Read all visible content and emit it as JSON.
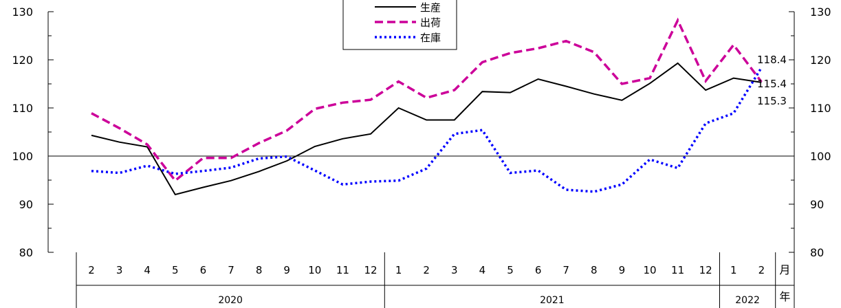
{
  "chart_data": {
    "type": "line",
    "title": "",
    "ylabel": "",
    "xlabel": "",
    "ylim": [
      80,
      130
    ],
    "yticks": [
      80,
      90,
      100,
      110,
      120,
      130
    ],
    "reference_line": 100,
    "categories": [
      "2",
      "3",
      "4",
      "5",
      "6",
      "7",
      "8",
      "9",
      "10",
      "11",
      "12",
      "1",
      "2",
      "3",
      "4",
      "5",
      "6",
      "7",
      "8",
      "9",
      "10",
      "11",
      "12",
      "1",
      "2"
    ],
    "month_unit_label": "月",
    "year_unit_label": "年",
    "years": [
      {
        "label": "2020",
        "span": 11
      },
      {
        "label": "2021",
        "span": 12
      },
      {
        "label": "2022",
        "span": 2
      }
    ],
    "legend_position": "top-center",
    "series": [
      {
        "name": "生産",
        "color": "#000000",
        "style": "solid",
        "values": [
          104.3,
          102.9,
          101.9,
          92.0,
          93.5,
          94.9,
          96.8,
          99.0,
          102.0,
          103.6,
          104.6,
          110.0,
          107.5,
          107.5,
          113.4,
          113.2,
          116.0,
          114.5,
          112.9,
          111.6,
          115.1,
          119.3,
          113.7,
          116.2,
          115.3
        ]
      },
      {
        "name": "出荷",
        "color": "#cc0099",
        "style": "dashed",
        "values": [
          108.9,
          105.8,
          102.4,
          94.9,
          99.6,
          99.6,
          102.7,
          105.3,
          109.8,
          111.1,
          111.7,
          115.5,
          112.1,
          113.7,
          119.5,
          121.4,
          122.4,
          123.9,
          121.6,
          115.0,
          116.2,
          128.2,
          115.6,
          123.1,
          115.4
        ]
      },
      {
        "name": "在庫",
        "color": "#0000ff",
        "style": "dotted",
        "values": [
          96.9,
          96.5,
          98.0,
          96.3,
          96.9,
          97.6,
          99.5,
          99.9,
          97.0,
          94.1,
          94.7,
          94.9,
          97.4,
          104.6,
          105.4,
          96.5,
          97.0,
          93.0,
          92.6,
          94.1,
          99.3,
          97.5,
          106.8,
          108.9,
          118.4
        ]
      }
    ],
    "end_labels": [
      "118.4",
      "115.4",
      "115.3"
    ]
  }
}
